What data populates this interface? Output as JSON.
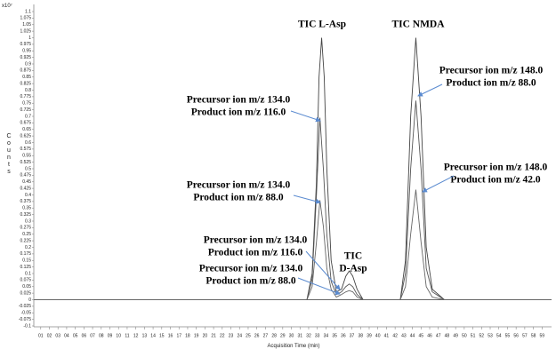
{
  "chart_data": {
    "type": "line",
    "multiplier": "x10⁷",
    "y_label": "Counts",
    "x_label": "Acquisition Time (min)",
    "xlim": [
      0.2,
      60.1
    ],
    "ylim": [
      -0.1,
      1.1
    ],
    "yticks": [
      -0.1,
      -0.075,
      -0.05,
      -0.025,
      0,
      0.025,
      0.05,
      0.075,
      0.1,
      0.125,
      0.15,
      0.175,
      0.2,
      0.225,
      0.25,
      0.275,
      0.3,
      0.325,
      0.35,
      0.375,
      0.4,
      0.425,
      0.45,
      0.475,
      0.5,
      0.525,
      0.55,
      0.575,
      0.6,
      0.625,
      0.65,
      0.675,
      0.7,
      0.725,
      0.75,
      0.775,
      0.8,
      0.825,
      0.85,
      0.875,
      0.9,
      0.925,
      0.95,
      0.975,
      1,
      1.025,
      1.05,
      1.075,
      1.1
    ],
    "xticks": [
      {
        "value": 1,
        "label": "01"
      },
      {
        "value": 2,
        "label": "02"
      },
      {
        "value": 3,
        "label": "03"
      },
      {
        "value": 4,
        "label": "04"
      },
      {
        "value": 5,
        "label": "05"
      },
      {
        "value": 6,
        "label": "06"
      },
      {
        "value": 7,
        "label": "07"
      },
      {
        "value": 8,
        "label": "08"
      },
      {
        "value": 9,
        "label": "09"
      },
      10,
      11,
      12,
      13,
      14,
      15,
      16,
      17,
      18,
      19,
      20,
      21,
      22,
      23,
      24,
      25,
      26,
      27,
      28,
      29,
      30,
      31,
      32,
      33,
      34,
      35,
      36,
      37,
      38,
      39,
      40,
      41,
      42,
      43,
      44,
      45,
      46,
      47,
      48,
      49,
      50,
      51,
      52,
      53,
      54,
      55,
      56,
      57,
      58,
      59
    ],
    "series": [
      {
        "color": "#444444",
        "x": [
          0.2,
          31.8,
          32.4,
          32.9,
          33.2,
          33.5,
          33.8,
          34.1,
          34.6,
          35.2,
          35.8,
          36.3,
          36.7,
          37.1,
          37.6,
          38.3,
          60.1
        ],
        "values": [
          0,
          0,
          0.1,
          0.45,
          0.85,
          1.0,
          0.85,
          0.5,
          0.15,
          0.03,
          0.04,
          0.09,
          0.11,
          0.09,
          0.04,
          0,
          0
        ]
      },
      {
        "color": "#555555",
        "x": [
          0.2,
          31.8,
          32.4,
          32.9,
          33.3,
          33.7,
          34.1,
          34.6,
          35.2,
          35.8,
          36.3,
          36.7,
          37.1,
          37.6,
          38.3,
          60.1
        ],
        "values": [
          0,
          0,
          0.08,
          0.4,
          0.695,
          0.5,
          0.25,
          0.07,
          0.02,
          0.03,
          0.05,
          0.06,
          0.05,
          0.02,
          0,
          0
        ]
      },
      {
        "color": "#666666",
        "x": [
          0.2,
          31.8,
          32.4,
          32.9,
          33.3,
          33.7,
          34.1,
          34.6,
          35.2,
          35.8,
          36.3,
          36.7,
          37.1,
          37.6,
          38.3,
          60.1
        ],
        "values": [
          0,
          0,
          0.05,
          0.22,
          0.38,
          0.28,
          0.12,
          0.04,
          0.01,
          0.02,
          0.03,
          0.035,
          0.03,
          0.01,
          0,
          0
        ]
      },
      {
        "color": "#444444",
        "x": [
          0.2,
          42.6,
          43.2,
          43.8,
          44.4,
          45.0,
          45.6,
          46.3,
          47.0,
          47.7,
          60.1
        ],
        "values": [
          0,
          0,
          0.15,
          0.7,
          1.0,
          0.7,
          0.2,
          0.04,
          0.02,
          0,
          0
        ]
      },
      {
        "color": "#555555",
        "x": [
          0.2,
          42.6,
          43.2,
          43.8,
          44.4,
          45.0,
          45.6,
          46.3,
          47.0,
          47.7,
          60.1
        ],
        "values": [
          0,
          0,
          0.1,
          0.5,
          0.76,
          0.5,
          0.12,
          0.03,
          0.015,
          0,
          0
        ]
      },
      {
        "color": "#666666",
        "x": [
          0.2,
          42.6,
          43.2,
          43.8,
          44.4,
          45.0,
          45.6,
          46.3,
          47.0,
          47.7,
          60.1
        ],
        "values": [
          0,
          0,
          0.05,
          0.25,
          0.42,
          0.22,
          0.05,
          0.01,
          0.005,
          0,
          0
        ]
      }
    ],
    "annotations": [
      {
        "lines": [
          "TIC L-Asp"
        ]
      },
      {
        "lines": [
          "TIC NMDA"
        ]
      },
      {
        "lines": [
          "TIC",
          "D-Asp"
        ]
      },
      {
        "lines": [
          "Precursor ion m/z 134.0",
          "Product ion m/z 116.0"
        ]
      },
      {
        "lines": [
          "Precursor ion m/z 134.0",
          "Product ion m/z 88.0"
        ]
      },
      {
        "lines": [
          "Precursor ion m/z 134.0",
          "Product ion m/z 116.0"
        ]
      },
      {
        "lines": [
          "Precursor ion m/z 134.0",
          "Product ion m/z 88.0"
        ]
      },
      {
        "lines": [
          "Precursor ion m/z 148.0",
          "Product ion m/z 88.0"
        ]
      },
      {
        "lines": [
          "Precursor ion m/z 148.0",
          "Product ion m/z 42.0"
        ]
      }
    ]
  }
}
